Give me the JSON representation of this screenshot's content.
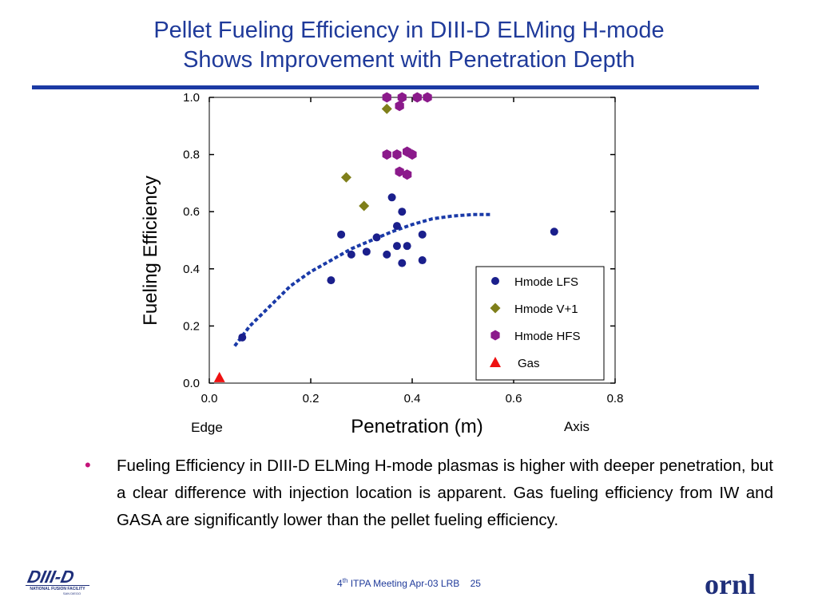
{
  "title_line1": "Pellet Fueling Efficiency in DIII-D ELMing H-mode",
  "title_line2": "Shows Improvement with Penetration Depth",
  "bullet_text": "Fueling Efficiency in DIII-D ELMing H-mode plasmas is higher with deeper penetration, but a clear difference with injection location is apparent. Gas fueling efficiency from IW and GASA are significantly lower than the pellet fueling efficiency.",
  "footer": {
    "meeting_num": "4",
    "meeting_sup": "th",
    "meeting_rest": " ITPA Meeting  Apr-03   LRB",
    "page": "25"
  },
  "logos": {
    "left_main": "DIII-D",
    "left_sub1": "NATIONAL FUSION FACILITY",
    "left_sub2": "SAN DIEGO",
    "right": "ornl"
  },
  "colors": {
    "title": "#1f3a9a",
    "rule": "#1c3aa4",
    "lfs": "#1a1f8c",
    "v1": "#7f7f1a",
    "hfs": "#8b1a8b",
    "gas": "#ee1111",
    "fit": "#1a3aa8",
    "bullet": "#c4147a"
  },
  "chart_data": {
    "type": "scatter",
    "xlabel": "Penetration (m)",
    "ylabel": "Fueling Efficiency",
    "xlim": [
      0,
      0.8
    ],
    "ylim": [
      0,
      1.0
    ],
    "xticks": [
      "0.0",
      "0.2",
      "0.4",
      "0.6",
      "0.8"
    ],
    "yticks": [
      "0.0",
      "0.2",
      "0.4",
      "0.6",
      "0.8",
      "1.0"
    ],
    "x_annotations": {
      "left": "Edge",
      "right": "Axis"
    },
    "legend_position": "bottom-right",
    "series": [
      {
        "name": "Hmode LFS",
        "marker": "circle",
        "points": [
          [
            0.065,
            0.16
          ],
          [
            0.24,
            0.36
          ],
          [
            0.26,
            0.52
          ],
          [
            0.28,
            0.45
          ],
          [
            0.31,
            0.46
          ],
          [
            0.33,
            0.51
          ],
          [
            0.35,
            0.45
          ],
          [
            0.36,
            0.65
          ],
          [
            0.37,
            0.55
          ],
          [
            0.37,
            0.48
          ],
          [
            0.38,
            0.6
          ],
          [
            0.38,
            0.42
          ],
          [
            0.39,
            0.48
          ],
          [
            0.42,
            0.52
          ],
          [
            0.42,
            0.43
          ],
          [
            0.68,
            0.53
          ]
        ]
      },
      {
        "name": "Hmode V+1",
        "marker": "diamond",
        "points": [
          [
            0.27,
            0.72
          ],
          [
            0.305,
            0.62
          ],
          [
            0.35,
            0.96
          ]
        ]
      },
      {
        "name": "Hmode HFS",
        "marker": "hexagon",
        "points": [
          [
            0.35,
            1.0
          ],
          [
            0.38,
            1.0
          ],
          [
            0.41,
            1.0
          ],
          [
            0.43,
            1.0
          ],
          [
            0.375,
            0.97
          ],
          [
            0.35,
            0.8
          ],
          [
            0.37,
            0.8
          ],
          [
            0.39,
            0.81
          ],
          [
            0.4,
            0.8
          ],
          [
            0.375,
            0.74
          ],
          [
            0.39,
            0.73
          ]
        ]
      },
      {
        "name": "Gas",
        "marker": "triangle",
        "points": [
          [
            0.02,
            0.02
          ]
        ]
      }
    ],
    "fit_line": [
      [
        0.05,
        0.13
      ],
      [
        0.08,
        0.2
      ],
      [
        0.12,
        0.27
      ],
      [
        0.16,
        0.34
      ],
      [
        0.2,
        0.39
      ],
      [
        0.24,
        0.43
      ],
      [
        0.28,
        0.47
      ],
      [
        0.32,
        0.5
      ],
      [
        0.36,
        0.53
      ],
      [
        0.4,
        0.555
      ],
      [
        0.44,
        0.575
      ],
      [
        0.48,
        0.585
      ],
      [
        0.52,
        0.59
      ],
      [
        0.555,
        0.59
      ]
    ]
  }
}
